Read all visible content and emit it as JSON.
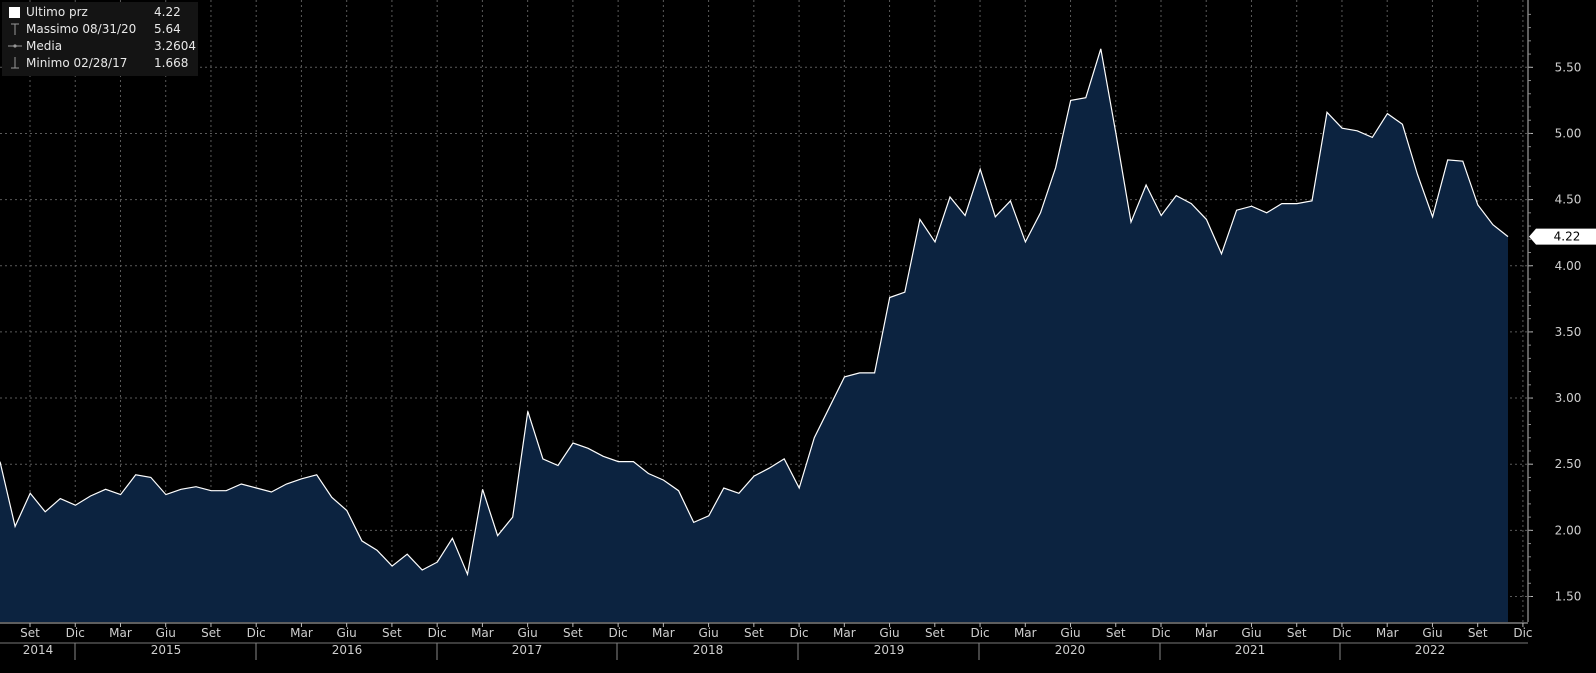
{
  "legend": {
    "rows": [
      {
        "label": "Ultimo prz",
        "value": "4.22",
        "icon": "white-square-swatch"
      },
      {
        "label": "Massimo 08/31/20",
        "value": "5.64",
        "icon": "max-marker-icon"
      },
      {
        "label": "Media",
        "value": "3.2604",
        "icon": "average-line-icon"
      },
      {
        "label": "Minimo 02/28/17",
        "value": "1.668",
        "icon": "min-marker-icon"
      }
    ]
  },
  "colors": {
    "background": "#000000",
    "area_fill": "#0c2340",
    "line": "#ffffff",
    "grid": "#5a5a5a",
    "axis_text": "#cfcfcf"
  },
  "chart_data": {
    "type": "area",
    "grid": true,
    "last_price_label": "4.22",
    "ylim": [
      1.3,
      6.0
    ],
    "y_ticks": [
      "1.50",
      "2.00",
      "2.50",
      "3.00",
      "3.50",
      "4.00",
      "4.50",
      "5.00",
      "5.50"
    ],
    "x_month_labels": [
      "Set",
      "Dic",
      "Mar",
      "Giu",
      "Set",
      "Dic",
      "Mar",
      "Giu",
      "Set",
      "Dic",
      "Mar",
      "Giu",
      "Set",
      "Dic",
      "Mar",
      "Giu",
      "Set",
      "Dic",
      "Mar",
      "Giu",
      "Set",
      "Dic",
      "Mar",
      "Giu",
      "Set",
      "Dic",
      "Mar",
      "Giu",
      "Set",
      "Dic",
      "Mar",
      "Giu",
      "Set",
      "Dic"
    ],
    "x_year_labels": [
      "2014",
      "2015",
      "2016",
      "2017",
      "2018",
      "2019",
      "2020",
      "2021",
      "2022"
    ],
    "series": [
      {
        "values": [
          2.52,
          2.03,
          2.28,
          2.14,
          2.24,
          2.19,
          2.26,
          2.31,
          2.27,
          2.42,
          2.4,
          2.27,
          2.31,
          2.33,
          2.3,
          2.3,
          2.35,
          2.32,
          2.29,
          2.35,
          2.39,
          2.42,
          2.25,
          2.15,
          1.92,
          1.85,
          1.73,
          1.82,
          1.7,
          1.76,
          1.94,
          1.668,
          2.31,
          1.96,
          2.1,
          2.9,
          2.54,
          2.49,
          2.66,
          2.62,
          2.56,
          2.52,
          2.52,
          2.43,
          2.38,
          2.3,
          2.06,
          2.11,
          2.32,
          2.28,
          2.41,
          2.47,
          2.54,
          2.32,
          2.7,
          2.93,
          3.16,
          3.19,
          3.19,
          3.76,
          3.8,
          4.35,
          4.18,
          4.52,
          4.38,
          4.73,
          4.37,
          4.49,
          4.18,
          4.4,
          4.74,
          5.25,
          5.27,
          5.64,
          5.0,
          4.33,
          4.61,
          4.38,
          4.53,
          4.47,
          4.35,
          4.09,
          4.42,
          4.45,
          4.4,
          4.47,
          4.47,
          4.49,
          5.16,
          5.04,
          5.02,
          4.97,
          5.15,
          5.07,
          4.69,
          4.37,
          4.8,
          4.79,
          4.46,
          4.31,
          4.22
        ]
      }
    ]
  }
}
